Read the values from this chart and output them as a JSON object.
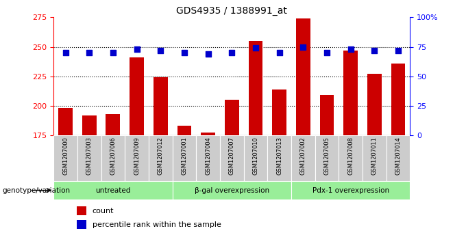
{
  "title": "GDS4935 / 1388991_at",
  "samples": [
    "GSM1207000",
    "GSM1207003",
    "GSM1207006",
    "GSM1207009",
    "GSM1207012",
    "GSM1207001",
    "GSM1207004",
    "GSM1207007",
    "GSM1207010",
    "GSM1207013",
    "GSM1207002",
    "GSM1207005",
    "GSM1207008",
    "GSM1207011",
    "GSM1207014"
  ],
  "counts": [
    198,
    192,
    193,
    241,
    224,
    183,
    177,
    205,
    255,
    214,
    274,
    209,
    247,
    227,
    236
  ],
  "percentiles": [
    70,
    70,
    70,
    73,
    72,
    70,
    69,
    70,
    74,
    70,
    75,
    70,
    73,
    72,
    72
  ],
  "groups": [
    {
      "label": "untreated",
      "start": 0,
      "end": 4
    },
    {
      "label": "β-gal overexpression",
      "start": 5,
      "end": 9
    },
    {
      "label": "Pdx-1 overexpression",
      "start": 10,
      "end": 14
    }
  ],
  "ylim_left": [
    175,
    275
  ],
  "ylim_right": [
    0,
    100
  ],
  "yticks_left": [
    175,
    200,
    225,
    250,
    275
  ],
  "yticks_right": [
    0,
    25,
    50,
    75,
    100
  ],
  "ytick_labels_right": [
    "0",
    "25",
    "50",
    "75",
    "100%"
  ],
  "bar_color": "#cc0000",
  "dot_color": "#0000cc",
  "group_bg_color": "#99ee99",
  "sample_bg_color": "#cccccc",
  "bar_width": 0.6,
  "dot_size": 30,
  "title_fontsize": 10
}
